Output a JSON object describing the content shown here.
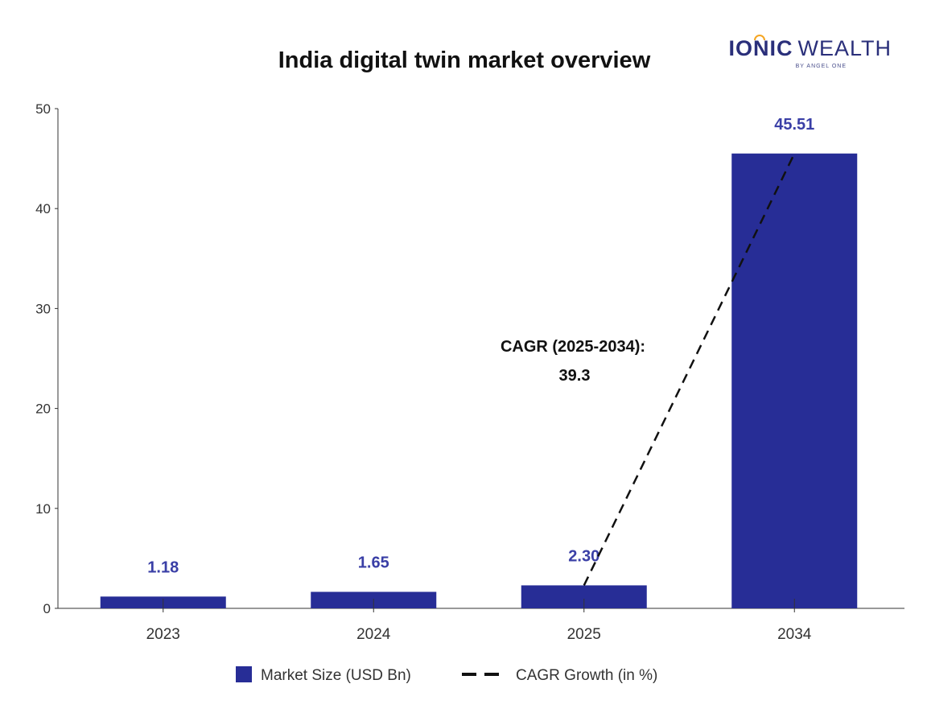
{
  "brand": {
    "name_bold": "IONIC",
    "name_light": "WEALTH",
    "tagline": "BY ANGEL ONE",
    "color_dark": "#2a2f7a",
    "color_accent": "#f5a623"
  },
  "chart_data": {
    "type": "bar",
    "title": "India digital twin market overview",
    "categories": [
      "2023",
      "2024",
      "2025",
      "2034"
    ],
    "series": [
      {
        "name": "Market Size (USD Bn)",
        "values": [
          1.18,
          1.65,
          2.3,
          45.51
        ],
        "labels": [
          "1.18",
          "1.65",
          "2.30",
          "45.51"
        ],
        "color": "#272d96"
      }
    ],
    "line": {
      "name": "CAGR Growth (in %)",
      "from_category": "2025",
      "to_category": "2034",
      "style": "dashed",
      "color": "#111111"
    },
    "annotation": {
      "line1": "CAGR (2025-2034):",
      "line2": "39.3"
    },
    "ylim": [
      0,
      50
    ],
    "yticks": [
      0,
      10,
      20,
      30,
      40,
      50
    ],
    "xlabel": "",
    "ylabel": "",
    "grid": false,
    "legend": "bottom-center",
    "label_color": "#3a3fa6"
  }
}
